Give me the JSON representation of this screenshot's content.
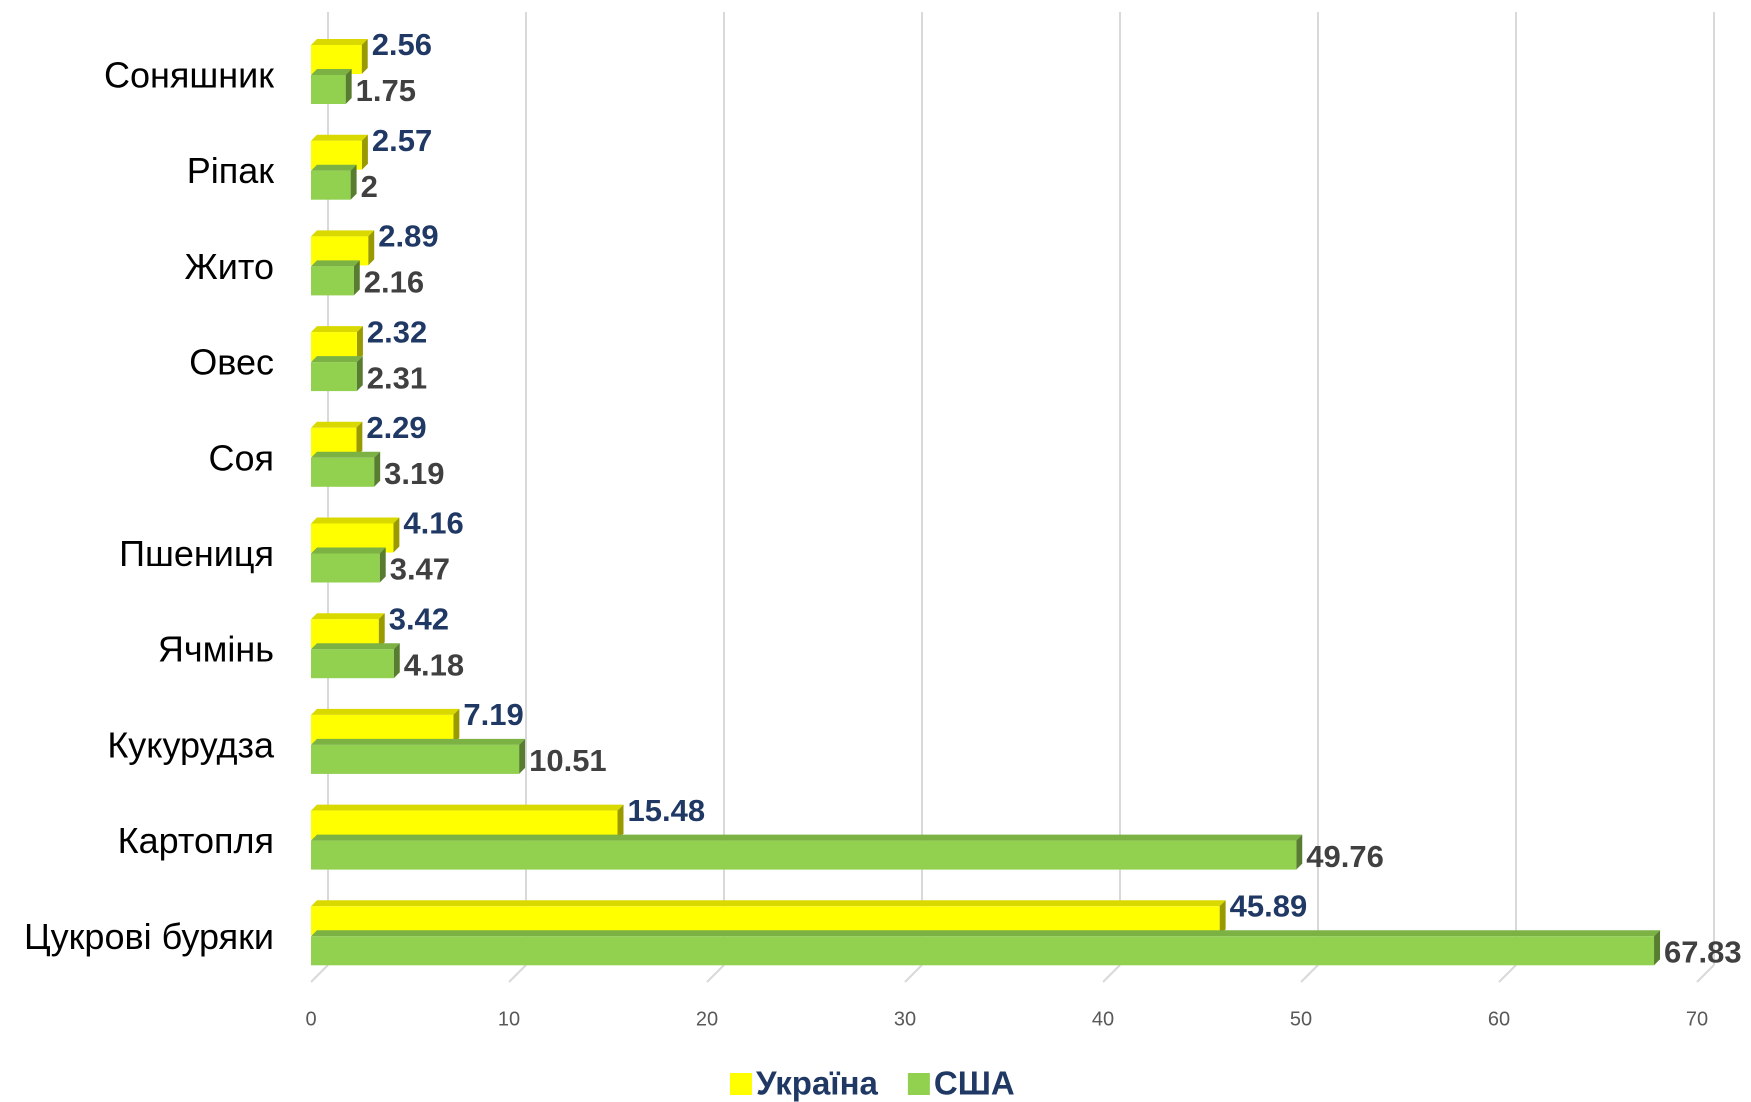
{
  "chart_data": {
    "type": "bar",
    "orientation": "horizontal",
    "categories": [
      "Соняшник",
      "Ріпак",
      "Жито",
      "Овес",
      "Соя",
      "Пшениця",
      "Ячмінь",
      "Кукурудза",
      "Картопля",
      "Цукрові буряки"
    ],
    "series": [
      {
        "name": "Україна",
        "color": "#ffff00",
        "label_color": "#1f3864",
        "values": [
          2.56,
          2.57,
          2.89,
          2.32,
          2.29,
          4.16,
          3.42,
          7.19,
          15.48,
          45.89
        ]
      },
      {
        "name": "США",
        "color": "#92d050",
        "label_color": "#404040",
        "values": [
          1.75,
          2,
          2.16,
          2.31,
          3.19,
          3.47,
          4.18,
          10.51,
          49.76,
          67.83
        ]
      }
    ],
    "xlim": [
      0,
      70
    ],
    "xticks": [
      0,
      10,
      20,
      30,
      40,
      50,
      60,
      70
    ],
    "grid": true,
    "legend": "bottom"
  }
}
